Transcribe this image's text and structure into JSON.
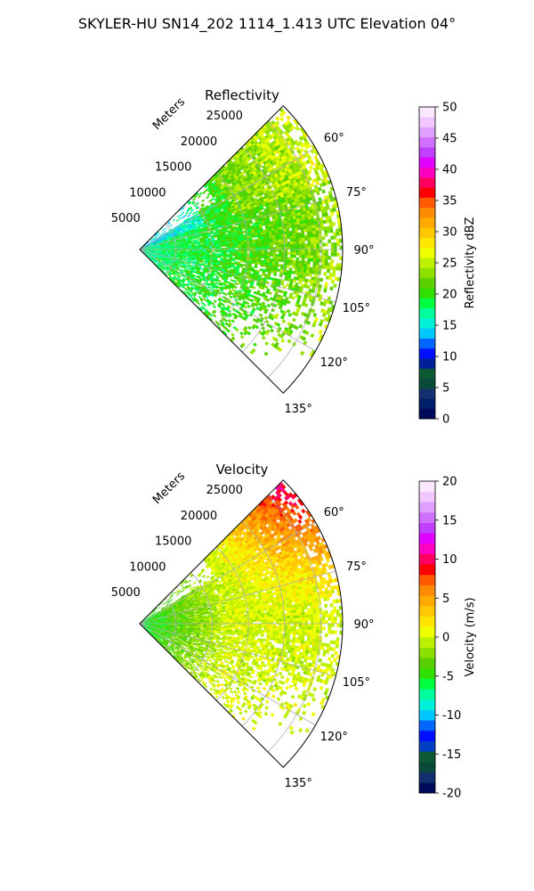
{
  "figure": {
    "title": "SKYLER-HU  SN14_202  1114_1.413 UTC Elevation 04°"
  },
  "chart_data": [
    {
      "type": "heatmap",
      "subtype": "polar-sector (PPI radar)",
      "title": "Reflectivity",
      "radial_label": "Meters",
      "radial_ticks": [
        "5000",
        "10000",
        "15000",
        "20000",
        "25000"
      ],
      "radial_tick_values": [
        5000,
        10000,
        15000,
        20000,
        25000
      ],
      "r_max": 28000,
      "theta_ticks": [
        "60°",
        "75°",
        "90°",
        "105°",
        "120°",
        "135°"
      ],
      "theta_tick_values": [
        60,
        75,
        90,
        105,
        120,
        135
      ],
      "theta_range": [
        45,
        135
      ],
      "grid": true,
      "colorbar": {
        "label": "Reflectivity dBZ",
        "range": [
          0,
          50
        ],
        "ticks": [
          "0",
          "5",
          "10",
          "15",
          "20",
          "25",
          "30",
          "35",
          "40",
          "45",
          "50"
        ],
        "tick_values": [
          0,
          5,
          10,
          15,
          20,
          25,
          30,
          35,
          40,
          45,
          50
        ]
      },
      "field_summary": {
        "near_range_dBZ": 17,
        "mid_range_dBZ": 21,
        "far_range_dBZ": 24,
        "max_dBZ": 27
      }
    },
    {
      "type": "heatmap",
      "subtype": "polar-sector (PPI radar)",
      "title": "Velocity",
      "radial_label": "Meters",
      "radial_ticks": [
        "5000",
        "10000",
        "15000",
        "20000",
        "25000"
      ],
      "radial_tick_values": [
        5000,
        10000,
        15000,
        20000,
        25000
      ],
      "r_max": 28000,
      "theta_ticks": [
        "60°",
        "75°",
        "90°",
        "105°",
        "120°",
        "135°"
      ],
      "theta_tick_values": [
        60,
        75,
        90,
        105,
        120,
        135
      ],
      "theta_range": [
        45,
        135
      ],
      "grid": true,
      "colorbar": {
        "label": "Velocity (m/s)",
        "range": [
          -20,
          20
        ],
        "ticks": [
          "-20",
          "-15",
          "-10",
          "-5",
          "0",
          "5",
          "10",
          "15",
          "20"
        ],
        "tick_values": [
          -20,
          -15,
          -10,
          -5,
          0,
          5,
          10,
          15,
          20
        ]
      },
      "field_summary": {
        "near_range_ms": -6,
        "mid_range_ms": 0,
        "far_range_north_ms": 8,
        "max_ms": 15
      }
    }
  ],
  "colors": {
    "reflectivity_scale": [
      "#000a5a",
      "#001f6b",
      "#12306d",
      "#0a4a3a",
      "#0c5a33",
      "#00209a",
      "#0010ff",
      "#0066ff",
      "#00c8ff",
      "#00f0d8",
      "#00ff9c",
      "#00ff40",
      "#30e000",
      "#5ad000",
      "#8ce000",
      "#bcf000",
      "#eeff00",
      "#ffe600",
      "#ffc800",
      "#ffaa00",
      "#ff8c00",
      "#ff5a00",
      "#ff0000",
      "#ff0060",
      "#ff00c0",
      "#e000ff",
      "#c040ff",
      "#d070ff",
      "#e0a0ff",
      "#f0c8ff",
      "#fbe8ff"
    ],
    "velocity_scale": [
      "#000a5a",
      "#12306d",
      "#0a4a3a",
      "#0c5a33",
      "#0040c0",
      "#0010ff",
      "#0066ff",
      "#00c8ff",
      "#00f0d8",
      "#00ff9c",
      "#00ff40",
      "#30e000",
      "#5ad000",
      "#8ce000",
      "#bcf000",
      "#eeff00",
      "#ffe600",
      "#ffc800",
      "#ffaa00",
      "#ff8c00",
      "#ff5a00",
      "#ff0000",
      "#ff0060",
      "#ff00c0",
      "#e000ff",
      "#c040ff",
      "#d070ff",
      "#e0a0ff",
      "#f0c8ff",
      "#fbe8ff"
    ]
  }
}
